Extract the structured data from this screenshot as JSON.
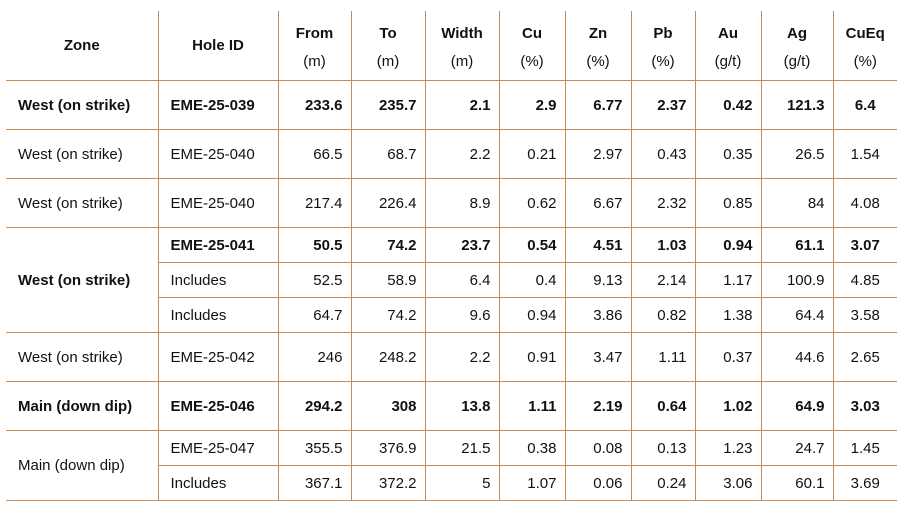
{
  "columns": [
    {
      "key": "zone",
      "label": "Zone",
      "unit": ""
    },
    {
      "key": "hole",
      "label": "Hole ID",
      "unit": ""
    },
    {
      "key": "from",
      "label": "From",
      "unit": "(m)"
    },
    {
      "key": "to",
      "label": "To",
      "unit": "(m)"
    },
    {
      "key": "width",
      "label": "Width",
      "unit": "(m)"
    },
    {
      "key": "cu",
      "label": "Cu",
      "unit": "(%)"
    },
    {
      "key": "zn",
      "label": "Zn",
      "unit": "(%)"
    },
    {
      "key": "pb",
      "label": "Pb",
      "unit": "(%)"
    },
    {
      "key": "au",
      "label": "Au",
      "unit": "(g/t)"
    },
    {
      "key": "ag",
      "label": "Ag",
      "unit": "(g/t)"
    },
    {
      "key": "cueq",
      "label": "CuEq",
      "unit": "(%)"
    }
  ],
  "rows": [
    {
      "zone": "West (on strike)",
      "hole": "EME-25-039",
      "from": "233.6",
      "to": "235.7",
      "width": "2.1",
      "cu": "2.9",
      "zn": "6.77",
      "pb": "2.37",
      "au": "0.42",
      "ag": "121.3",
      "cueq": "6.4",
      "bold": true
    },
    {
      "zone": "West (on strike)",
      "hole": "EME-25-040",
      "from": "66.5",
      "to": "68.7",
      "width": "2.2",
      "cu": "0.21",
      "zn": "2.97",
      "pb": "0.43",
      "au": "0.35",
      "ag": "26.5",
      "cueq": "1.54",
      "bold": false
    },
    {
      "zone": "West (on strike)",
      "hole": "EME-25-040",
      "from": "217.4",
      "to": "226.4",
      "width": "8.9",
      "cu": "0.62",
      "zn": "6.67",
      "pb": "2.32",
      "au": "0.85",
      "ag": "84",
      "cueq": "4.08",
      "bold": false
    },
    {
      "zone": "West (on strike)",
      "hole": "EME-25-041",
      "from": "50.5",
      "to": "74.2",
      "width": "23.7",
      "cu": "0.54",
      "zn": "4.51",
      "pb": "1.03",
      "au": "0.94",
      "ag": "61.1",
      "cueq": "3.07",
      "bold": true
    },
    {
      "zone": "",
      "hole": "Includes",
      "from": "52.5",
      "to": "58.9",
      "width": "6.4",
      "cu": "0.4",
      "zn": "9.13",
      "pb": "2.14",
      "au": "1.17",
      "ag": "100.9",
      "cueq": "4.85",
      "bold": false
    },
    {
      "zone": "",
      "hole": "Includes",
      "from": "64.7",
      "to": "74.2",
      "width": "9.6",
      "cu": "0.94",
      "zn": "3.86",
      "pb": "0.82",
      "au": "1.38",
      "ag": "64.4",
      "cueq": "3.58",
      "bold": false
    },
    {
      "zone": "West (on strike)",
      "hole": "EME-25-042",
      "from": "246",
      "to": "248.2",
      "width": "2.2",
      "cu": "0.91",
      "zn": "3.47",
      "pb": "1.11",
      "au": "0.37",
      "ag": "44.6",
      "cueq": "2.65",
      "bold": false
    },
    {
      "zone": "Main (down dip)",
      "hole": "EME-25-046",
      "from": "294.2",
      "to": "308",
      "width": "13.8",
      "cu": "1.11",
      "zn": "2.19",
      "pb": "0.64",
      "au": "1.02",
      "ag": "64.9",
      "cueq": "3.03",
      "bold": true
    },
    {
      "zone": "Main (down dip)",
      "hole": "EME-25-047",
      "from": "355.5",
      "to": "376.9",
      "width": "21.5",
      "cu": "0.38",
      "zn": "0.08",
      "pb": "0.13",
      "au": "1.23",
      "ag": "24.7",
      "cueq": "1.45",
      "bold": false
    },
    {
      "zone": "",
      "hole": "Includes",
      "from": "367.1",
      "to": "372.2",
      "width": "5",
      "cu": "1.07",
      "zn": "0.06",
      "pb": "0.24",
      "au": "3.06",
      "ag": "60.1",
      "cueq": "3.69",
      "bold": false
    }
  ],
  "colors": {
    "border": "#c98a53",
    "text": "#111111",
    "background": "#ffffff"
  }
}
